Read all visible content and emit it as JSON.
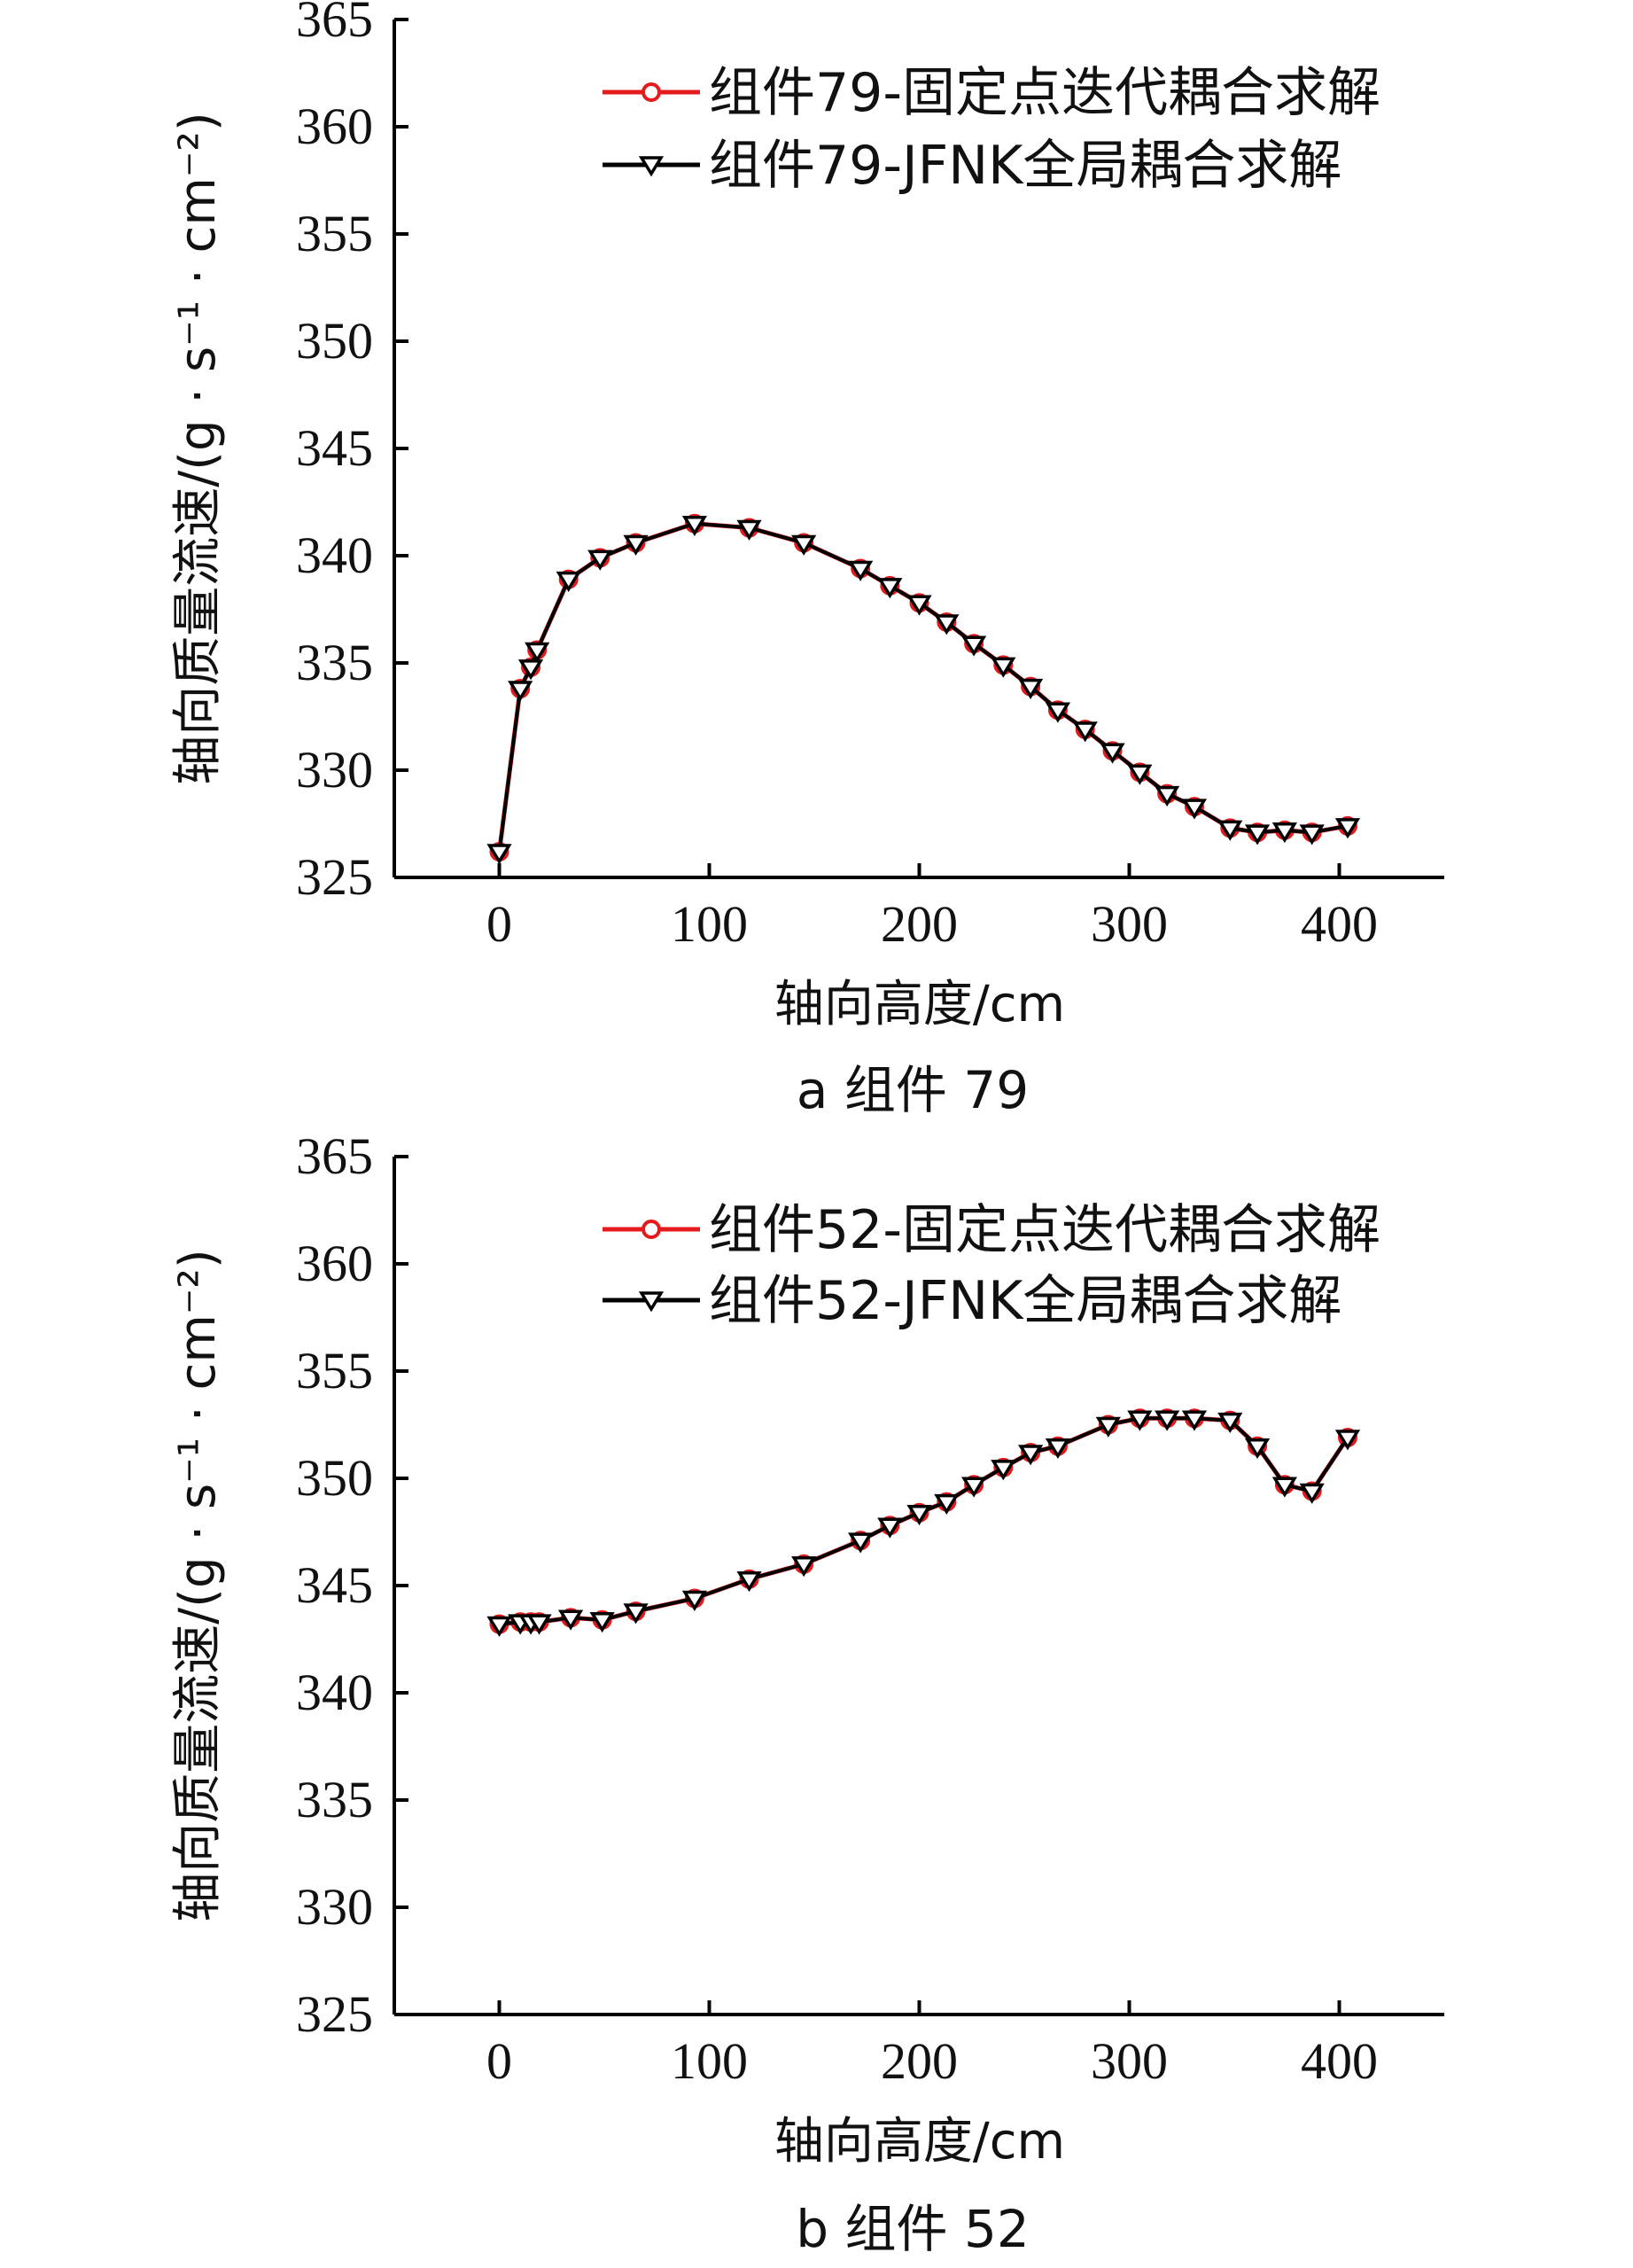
{
  "chart_data": [
    {
      "type": "line",
      "panel_id": "a",
      "caption": "a  组件 79",
      "xlabel": "轴向高度/cm",
      "ylabel": "轴向质量流速/(g · s⁻¹ · cm⁻²)",
      "xlim": [
        -50,
        450
      ],
      "ylim": [
        325,
        365
      ],
      "x_ticks": [
        "0",
        "100",
        "200",
        "300",
        "400"
      ],
      "y_ticks": [
        "325",
        "330",
        "335",
        "340",
        "345",
        "350",
        "355",
        "360",
        "365"
      ],
      "legend_position": "top-right",
      "x": [
        0,
        10,
        15,
        18,
        33,
        48,
        65,
        93,
        119,
        145,
        172,
        186,
        200,
        213,
        226,
        240,
        253,
        266,
        279,
        292,
        305,
        318,
        331,
        348,
        361,
        374,
        387,
        404
      ],
      "series": [
        {
          "name": "组件79-固定点迭代耦合求解",
          "color": "#e41a1c",
          "marker": "circle",
          "values": [
            326.2,
            333.8,
            334.8,
            335.6,
            338.9,
            339.9,
            340.6,
            341.5,
            341.3,
            340.6,
            339.4,
            338.6,
            337.8,
            336.9,
            335.9,
            334.9,
            333.9,
            332.8,
            331.9,
            330.9,
            329.9,
            328.9,
            328.3,
            327.3,
            327.1,
            327.2,
            327.1,
            327.4
          ]
        },
        {
          "name": "组件79-JFNK全局耦合求解",
          "color": "#000000",
          "marker": "triangle-down",
          "values": [
            326.2,
            333.8,
            334.8,
            335.6,
            338.9,
            339.9,
            340.6,
            341.5,
            341.3,
            340.6,
            339.4,
            338.6,
            337.8,
            336.9,
            335.9,
            334.9,
            333.9,
            332.8,
            331.9,
            330.9,
            329.9,
            328.9,
            328.3,
            327.3,
            327.1,
            327.2,
            327.1,
            327.4
          ]
        }
      ]
    },
    {
      "type": "line",
      "panel_id": "b",
      "caption": "b  组件 52",
      "xlabel": "轴向高度/cm",
      "ylabel": "轴向质量流速/(g · s⁻¹ · cm⁻²)",
      "xlim": [
        -50,
        450
      ],
      "ylim": [
        325,
        365
      ],
      "x_ticks": [
        "0",
        "100",
        "200",
        "300",
        "400"
      ],
      "y_ticks": [
        "325",
        "330",
        "335",
        "340",
        "345",
        "350",
        "355",
        "360",
        "365"
      ],
      "legend_position": "top-right",
      "x": [
        0,
        10,
        15,
        19,
        34,
        49,
        65,
        93,
        119,
        145,
        172,
        186,
        200,
        213,
        226,
        240,
        253,
        266,
        290,
        305,
        318,
        331,
        348,
        361,
        374,
        387,
        404
      ],
      "series": [
        {
          "name": "组件52-固定点迭代耦合求解",
          "color": "#e41a1c",
          "marker": "circle",
          "values": [
            343.2,
            343.3,
            343.3,
            343.3,
            343.5,
            343.4,
            343.8,
            344.4,
            345.3,
            346.0,
            347.1,
            347.8,
            348.4,
            348.9,
            349.7,
            350.5,
            351.2,
            351.5,
            352.5,
            352.8,
            352.8,
            352.8,
            352.7,
            351.5,
            349.7,
            349.4,
            351.9
          ]
        },
        {
          "name": "组件52-JFNK全局耦合求解",
          "color": "#000000",
          "marker": "triangle-down",
          "values": [
            343.2,
            343.3,
            343.3,
            343.3,
            343.5,
            343.4,
            343.8,
            344.4,
            345.3,
            346.0,
            347.1,
            347.8,
            348.4,
            348.9,
            349.7,
            350.5,
            351.2,
            351.5,
            352.5,
            352.8,
            352.8,
            352.8,
            352.7,
            351.5,
            349.7,
            349.4,
            351.9
          ]
        }
      ]
    }
  ]
}
